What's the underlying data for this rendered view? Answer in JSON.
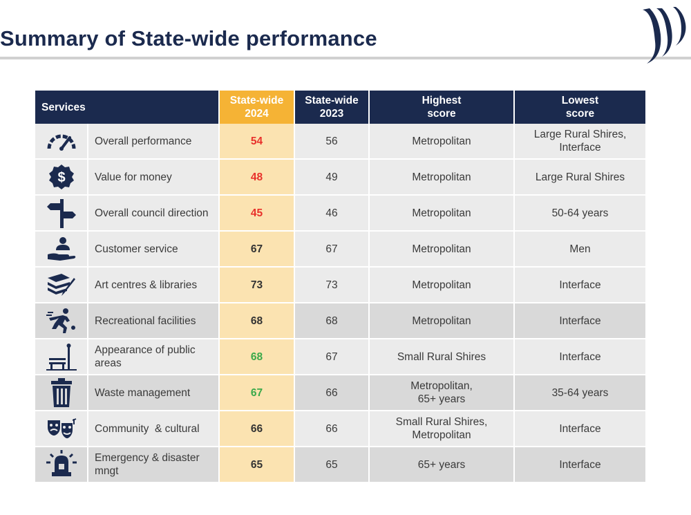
{
  "page": {
    "title": "Summary of State-wide performance"
  },
  "colors": {
    "navy": "#1b2a4e",
    "gold": "#f5b335",
    "light_gold": "#fbe3b1",
    "red": "#e8312b",
    "green": "#3aa94a"
  },
  "table": {
    "headers": {
      "services": "Services",
      "sw2024_l1": "State-wide",
      "sw2024_l2": "2024",
      "sw2023_l1": "State-wide",
      "sw2023_l2": "2023",
      "high_l1": "Highest",
      "high_l2": "score",
      "low_l1": "Lowest",
      "low_l2": "score"
    },
    "rows": [
      {
        "icon": "speedometer-icon",
        "service": "Overall performance",
        "sw2024": "54",
        "sw2023": "56",
        "high_l1": "Metropolitan",
        "high_l2": "",
        "low_l1": "Large Rural Shires,",
        "low_l2": "Interface",
        "flag": "red"
      },
      {
        "icon": "dollar-badge-icon",
        "service": "Value for money",
        "sw2024": "48",
        "sw2023": "49",
        "high_l1": "Metropolitan",
        "high_l2": "",
        "low_l1": "Large Rural Shires",
        "low_l2": "",
        "flag": "red"
      },
      {
        "icon": "signpost-icon",
        "service": "Overall council direction",
        "sw2024": "45",
        "sw2023": "46",
        "high_l1": "Metropolitan",
        "high_l2": "",
        "low_l1": "50-64 years",
        "low_l2": "",
        "flag": "red"
      },
      {
        "icon": "customer-service-icon",
        "service": "Customer service",
        "sw2024": "67",
        "sw2023": "67",
        "high_l1": "Metropolitan",
        "high_l2": "",
        "low_l1": "Men",
        "low_l2": "",
        "flag": "none"
      },
      {
        "icon": "books-icon",
        "service": "Art centres & libraries",
        "sw2024": "73",
        "sw2023": "73",
        "high_l1": "Metropolitan",
        "high_l2": "",
        "low_l1": "Interface",
        "low_l2": "",
        "flag": "none"
      },
      {
        "icon": "runner-icon",
        "service": "Recreational facilities",
        "sw2024": "68",
        "sw2023": "68",
        "high_l1": "Metropolitan",
        "high_l2": "",
        "low_l1": "Interface",
        "low_l2": "",
        "flag": "none"
      },
      {
        "icon": "park-bench-icon",
        "service_l1": "Appearance of public",
        "service_l2": "areas",
        "sw2024": "68",
        "sw2023": "67",
        "high_l1": "Small Rural Shires",
        "high_l2": "",
        "low_l1": "Interface",
        "low_l2": "",
        "flag": "green"
      },
      {
        "icon": "trash-bin-icon",
        "service": "Waste management",
        "sw2024": "67",
        "sw2023": "66",
        "high_l1": "Metropolitan,",
        "high_l2": "65+ years",
        "low_l1": "35-64 years",
        "low_l2": "",
        "flag": "green"
      },
      {
        "icon": "theatre-masks-icon",
        "service": "Community  & cultural",
        "sw2024": "66",
        "sw2023": "66",
        "high_l1": "Small Rural Shires,",
        "high_l2": "Metropolitan",
        "low_l1": "Interface",
        "low_l2": "",
        "flag": "none"
      },
      {
        "icon": "emergency-light-icon",
        "service_l1": "Emergency & disaster",
        "service_l2": "mngt",
        "sw2024": "65",
        "sw2023": "65",
        "high_l1": "65+ years",
        "high_l2": "",
        "low_l1": "Interface",
        "low_l2": "",
        "flag": "none"
      }
    ]
  }
}
